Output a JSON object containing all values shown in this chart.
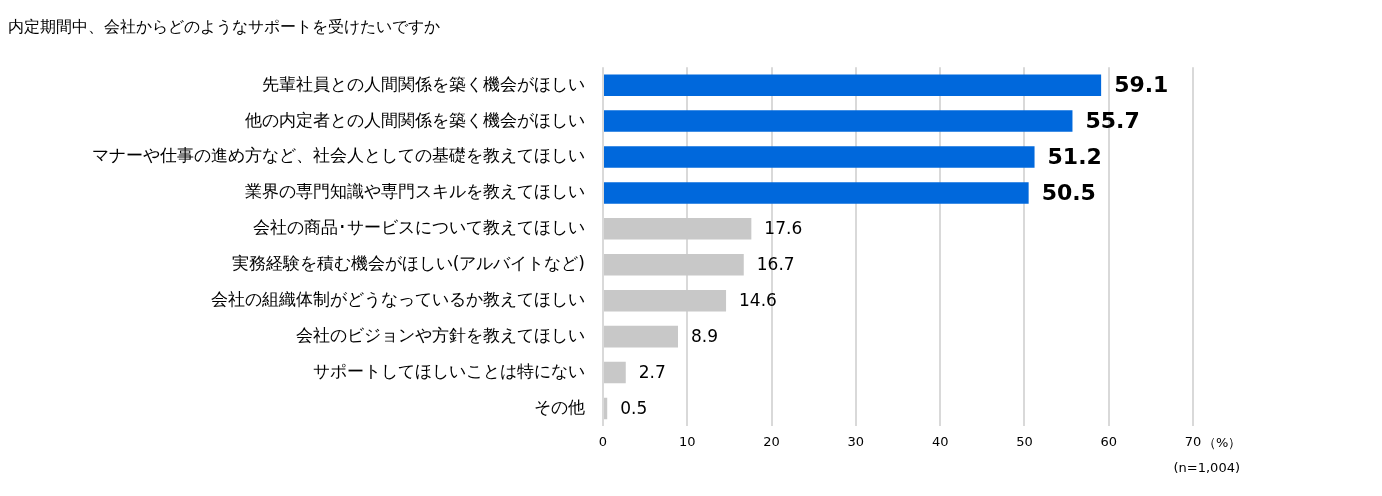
{
  "chart_data": {
    "type": "bar",
    "orientation": "horizontal",
    "title": "内定期間中、会社からどのようなサポートを受けたいですか",
    "categories": [
      "先輩社員との人間関係を築く機会がほしい",
      "他の内定者との人間関係を築く機会がほしい",
      "マナーや仕事の進め方など、社会人としての基礎を教えてほしい",
      "業界の専門知識や専門スキルを教えてほしい",
      "会社の商品･サービスについて教えてほしい",
      "実務経験を積む機会がほしい(アルバイトなど)",
      "会社の組織体制がどうなっているか教えてほしい",
      "会社のビジョンや方針を教えてほしい",
      "サポートしてほしいことは特にない",
      "その他"
    ],
    "values": [
      59.1,
      55.7,
      51.2,
      50.5,
      17.6,
      16.7,
      14.6,
      8.9,
      2.7,
      0.5
    ],
    "colors": [
      "#0068dc",
      "#0068dc",
      "#0068dc",
      "#0068dc",
      "#c8c8c8",
      "#c8c8c8",
      "#c8c8c8",
      "#c8c8c8",
      "#c8c8c8",
      "#c8c8c8"
    ],
    "xlim": [
      0,
      70
    ],
    "xticks": [
      0,
      10,
      20,
      30,
      40,
      50,
      60,
      70
    ],
    "xlabel": "（%）",
    "grid": "x",
    "data_labels": true,
    "legend": false,
    "annotations": [
      "(n=1,004)"
    ]
  }
}
